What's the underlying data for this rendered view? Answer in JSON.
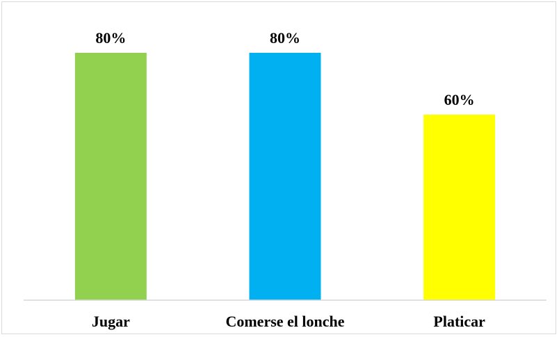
{
  "chart_data": {
    "type": "bar",
    "categories": [
      "Jugar",
      "Comerse el lonche",
      "Platicar"
    ],
    "values": [
      80,
      80,
      60
    ],
    "value_labels": [
      "80%",
      "80%",
      "60%"
    ],
    "colors": [
      "#92d050",
      "#00b0f0",
      "#ffff00"
    ],
    "title": "",
    "xlabel": "",
    "ylabel": "",
    "ylim": [
      0,
      100
    ],
    "grid": false,
    "legend": "none"
  }
}
